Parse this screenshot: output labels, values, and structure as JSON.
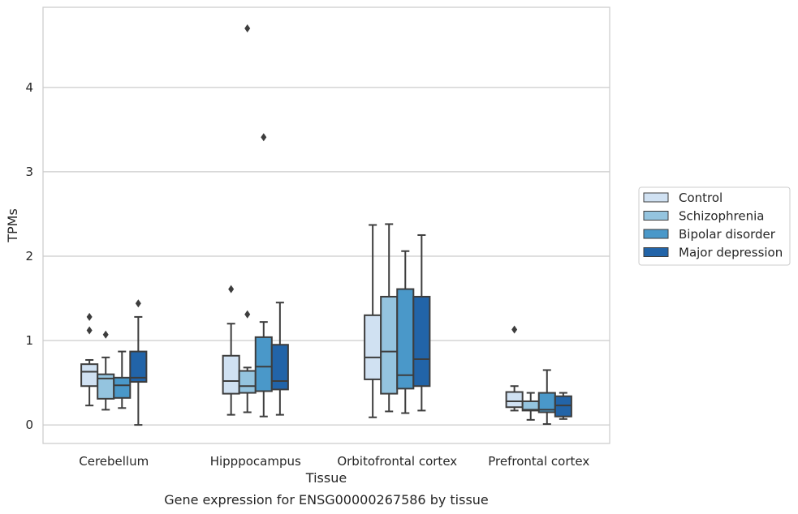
{
  "caption": "Gene expression for ENSG00000267586 by tissue",
  "chart_data": {
    "type": "boxplot",
    "xlabel": "Tissue",
    "ylabel": "TPMs",
    "ylim": [
      -0.22,
      4.95
    ],
    "yticks": [
      0,
      1,
      2,
      3,
      4
    ],
    "grid": true,
    "legend_position": "right",
    "categories": [
      "Cerebellum",
      "Hipppocampus",
      "Orbitofrontal cortex",
      "Prefrontal cortex"
    ],
    "series": [
      {
        "name": "Control",
        "color": "#d0e1f2",
        "boxes": [
          {
            "whislo": 0.23,
            "q1": 0.46,
            "med": 0.63,
            "q3": 0.72,
            "whishi": 0.77,
            "fliers": [
              1.12,
              1.28
            ]
          },
          {
            "whislo": 0.12,
            "q1": 0.37,
            "med": 0.52,
            "q3": 0.82,
            "whishi": 1.2,
            "fliers": [
              1.61
            ]
          },
          {
            "whislo": 0.09,
            "q1": 0.54,
            "med": 0.8,
            "q3": 1.3,
            "whishi": 2.37,
            "fliers": []
          },
          {
            "whislo": 0.17,
            "q1": 0.21,
            "med": 0.28,
            "q3": 0.39,
            "whishi": 0.46,
            "fliers": [
              1.13
            ]
          }
        ]
      },
      {
        "name": "Schizophrenia",
        "color": "#94c4df",
        "boxes": [
          {
            "whislo": 0.18,
            "q1": 0.31,
            "med": 0.55,
            "q3": 0.6,
            "whishi": 0.8,
            "fliers": [
              1.07
            ]
          },
          {
            "whislo": 0.15,
            "q1": 0.38,
            "med": 0.46,
            "q3": 0.64,
            "whishi": 0.68,
            "fliers": [
              1.31,
              4.7
            ]
          },
          {
            "whislo": 0.16,
            "q1": 0.37,
            "med": 0.87,
            "q3": 1.52,
            "whishi": 2.38,
            "fliers": []
          },
          {
            "whislo": 0.06,
            "q1": 0.17,
            "med": 0.18,
            "q3": 0.28,
            "whishi": 0.38,
            "fliers": []
          }
        ]
      },
      {
        "name": "Bipolar disorder",
        "color": "#4a98c9",
        "boxes": [
          {
            "whislo": 0.2,
            "q1": 0.32,
            "med": 0.47,
            "q3": 0.56,
            "whishi": 0.87,
            "fliers": []
          },
          {
            "whislo": 0.1,
            "q1": 0.4,
            "med": 0.69,
            "q3": 1.04,
            "whishi": 1.22,
            "fliers": [
              3.41
            ]
          },
          {
            "whislo": 0.14,
            "q1": 0.43,
            "med": 0.59,
            "q3": 1.61,
            "whishi": 2.06,
            "fliers": []
          },
          {
            "whislo": 0.01,
            "q1": 0.15,
            "med": 0.18,
            "q3": 0.38,
            "whishi": 0.65,
            "fliers": []
          }
        ]
      },
      {
        "name": "Major depression",
        "color": "#2264a8",
        "boxes": [
          {
            "whislo": 0.0,
            "q1": 0.51,
            "med": 0.56,
            "q3": 0.87,
            "whishi": 1.28,
            "fliers": [
              1.44
            ]
          },
          {
            "whislo": 0.12,
            "q1": 0.42,
            "med": 0.52,
            "q3": 0.95,
            "whishi": 1.45,
            "fliers": []
          },
          {
            "whislo": 0.17,
            "q1": 0.46,
            "med": 0.78,
            "q3": 1.52,
            "whishi": 2.25,
            "fliers": []
          },
          {
            "whislo": 0.07,
            "q1": 0.1,
            "med": 0.23,
            "q3": 0.34,
            "whishi": 0.38,
            "fliers": []
          }
        ]
      }
    ]
  }
}
